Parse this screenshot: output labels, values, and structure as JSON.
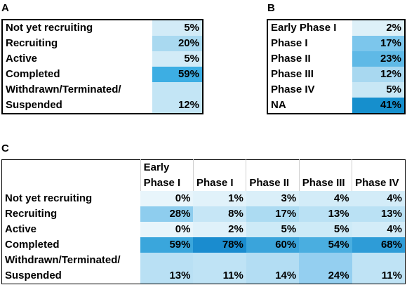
{
  "panels": {
    "a": {
      "letter": "A"
    },
    "b": {
      "letter": "B"
    },
    "c": {
      "letter": "C"
    }
  },
  "chart_data": [
    {
      "type": "table",
      "categories": [
        "Not yet recruiting",
        "Recruiting",
        "Active",
        "Completed",
        "Withdrawn/Terminated/\nSuspended"
      ],
      "values": [
        5,
        20,
        5,
        59,
        12
      ],
      "labels": [
        "5%",
        "20%",
        "5%",
        "59%",
        "12%"
      ],
      "colors": [
        "#d2ebf7",
        "#a9d9f0",
        "#d2ebf7",
        "#3daee3",
        "#c3e5f5"
      ]
    },
    {
      "type": "table",
      "categories": [
        "Early Phase I",
        "Phase I",
        "Phase II",
        "Phase III",
        "Phase IV",
        "NA"
      ],
      "values": [
        2,
        17,
        23,
        12,
        5,
        41
      ],
      "labels": [
        "2%",
        "17%",
        "23%",
        "12%",
        "5%",
        "41%"
      ],
      "colors": [
        "#ddf0f8",
        "#7cc6ec",
        "#5fb9e6",
        "#a8d8f0",
        "#c8e7f5",
        "#168fcd"
      ]
    },
    {
      "type": "heatmap",
      "columns": [
        "Early\nPhase I",
        "Phase I",
        "Phase II",
        "Phase III",
        "Phase IV"
      ],
      "rows": [
        "Not yet recruiting",
        "Recruiting",
        "Active",
        "Completed",
        "Withdrawn/Terminated/\nSuspended"
      ],
      "values": [
        [
          0,
          1,
          3,
          4,
          4
        ],
        [
          28,
          8,
          17,
          13,
          13
        ],
        [
          0,
          2,
          5,
          5,
          4
        ],
        [
          59,
          78,
          60,
          54,
          68
        ],
        [
          13,
          11,
          14,
          24,
          11
        ]
      ],
      "labels": [
        [
          "0%",
          "1%",
          "3%",
          "4%",
          "4%"
        ],
        [
          "28%",
          "8%",
          "17%",
          "13%",
          "13%"
        ],
        [
          "0%",
          "2%",
          "5%",
          "5%",
          "4%"
        ],
        [
          "59%",
          "78%",
          "60%",
          "54%",
          "68%"
        ],
        [
          "13%",
          "11%",
          "14%",
          "24%",
          "11%"
        ]
      ],
      "colors": [
        [
          "#e8f5fb",
          "#e1f2fa",
          "#daeff9",
          "#d3ecf8",
          "#d3ecf8"
        ],
        [
          "#8ecdee",
          "#c6e6f6",
          "#acdbf2",
          "#bae1f4",
          "#bae1f4"
        ],
        [
          "#e8f5fb",
          "#dff1fa",
          "#cdeaf7",
          "#cdeaf7",
          "#d3ecf8"
        ],
        [
          "#3aa6dc",
          "#1a8ccf",
          "#3aa4db",
          "#4aaee0",
          "#2e9cd7"
        ],
        [
          "#b9e0f4",
          "#bfe3f5",
          "#b3ddf3",
          "#94cff0",
          "#bfe3f5"
        ]
      ]
    }
  ]
}
